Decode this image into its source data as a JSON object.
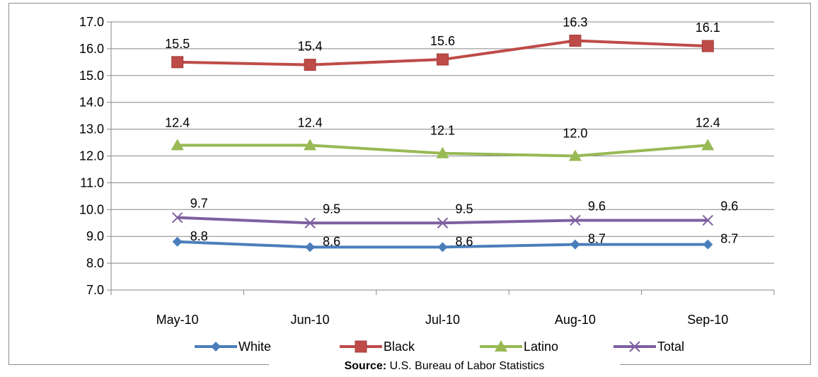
{
  "chart_data": {
    "type": "line",
    "categories": [
      "May-10",
      "Jun-10",
      "Jul-10",
      "Aug-10",
      "Sep-10"
    ],
    "ylim": [
      7.0,
      17.0
    ],
    "yticks": [
      "7.0",
      "8.0",
      "9.0",
      "10.0",
      "11.0",
      "12.0",
      "13.0",
      "14.0",
      "15.0",
      "16.0",
      "17.0"
    ],
    "grid": true,
    "legend_position": "bottom",
    "series": [
      {
        "name": "White",
        "values": [
          8.8,
          8.6,
          8.6,
          8.7,
          8.7
        ],
        "labels": [
          "8.8",
          "8.6",
          "8.6",
          "8.7",
          "8.7"
        ],
        "color": "#4a7ebb",
        "marker": "diamond"
      },
      {
        "name": "Black",
        "values": [
          15.5,
          15.4,
          15.6,
          16.3,
          16.1
        ],
        "labels": [
          "15.5",
          "15.4",
          "15.6",
          "16.3",
          "16.1"
        ],
        "color": "#be4b48",
        "marker": "square"
      },
      {
        "name": "Latino",
        "values": [
          12.4,
          12.4,
          12.1,
          12.0,
          12.4
        ],
        "labels": [
          "12.4",
          "12.4",
          "12.1",
          "12.0",
          "12.4"
        ],
        "color": "#98b954",
        "marker": "triangle"
      },
      {
        "name": "Total",
        "values": [
          9.7,
          9.5,
          9.5,
          9.6,
          9.6
        ],
        "labels": [
          "9.7",
          "9.5",
          "9.5",
          "9.6",
          "9.6"
        ],
        "color": "#7d60a0",
        "marker": "x"
      }
    ]
  },
  "source": {
    "prefix": "Source:",
    "text": " U.S. Bureau of Labor Statistics"
  }
}
